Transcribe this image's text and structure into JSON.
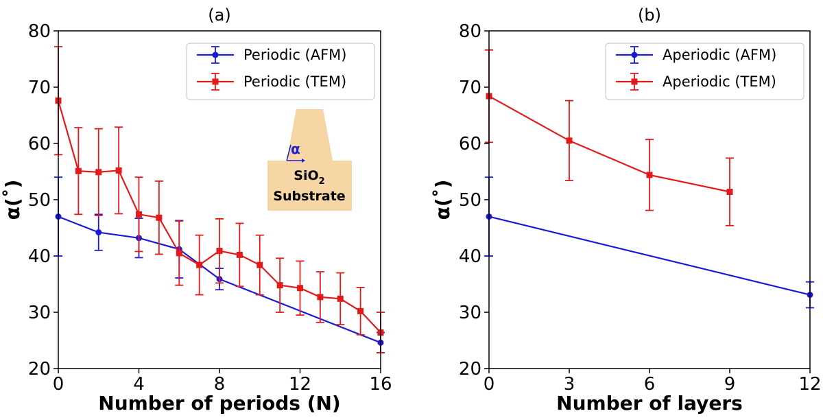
{
  "chart_data": [
    {
      "type": "line",
      "title": "(a)",
      "xlabel": "Number of periods (N)",
      "ylabel": "α(˚)",
      "xlim": [
        0,
        16
      ],
      "ylim": [
        20,
        80
      ],
      "xticks": [
        0,
        4,
        8,
        12,
        16
      ],
      "yticks": [
        20,
        30,
        40,
        50,
        60,
        70,
        80
      ],
      "legend_position": "top-right",
      "series": [
        {
          "name": "Periodic (AFM)",
          "color": "#1a1adb",
          "marker": "circle",
          "x": [
            0,
            2,
            4,
            6,
            8,
            16
          ],
          "y": [
            47,
            44.2,
            43.2,
            41.2,
            35.9,
            24.6
          ],
          "err": [
            7,
            3.2,
            3.5,
            5.1,
            1.9,
            1.8
          ]
        },
        {
          "name": "Periodic (TEM)",
          "color": "#e41a1a",
          "marker": "square",
          "x": [
            0,
            1,
            2,
            3,
            4,
            5,
            6,
            7,
            8,
            9,
            10,
            11,
            12,
            13,
            14,
            15,
            16
          ],
          "y": [
            67.6,
            55.1,
            54.9,
            55.2,
            47.4,
            46.8,
            40.5,
            38.4,
            40.9,
            40.2,
            38.4,
            34.8,
            34.3,
            32.7,
            32.4,
            30.2,
            26.4
          ],
          "err": [
            9.6,
            7.7,
            7.7,
            7.7,
            6.6,
            6.5,
            5.7,
            5.3,
            5.7,
            5.6,
            5.3,
            4.8,
            4.8,
            4.5,
            4.6,
            4.2,
            3.6
          ]
        }
      ],
      "inset": {
        "angle_symbol": "α",
        "material_main": "SiO",
        "material_sub": "2",
        "substrate_label": "Substrate",
        "fill_color": "#f7d6a5"
      }
    },
    {
      "type": "line",
      "title": "(b)",
      "xlabel": "Number of layers",
      "ylabel": "α(˚)",
      "xlim": [
        0,
        12
      ],
      "ylim": [
        20,
        80
      ],
      "xticks": [
        0,
        3,
        6,
        9,
        12
      ],
      "yticks": [
        20,
        30,
        40,
        50,
        60,
        70,
        80
      ],
      "legend_position": "top-right",
      "series": [
        {
          "name": "Aperiodic (AFM)",
          "color": "#1a1adb",
          "marker": "circle",
          "x": [
            0,
            12
          ],
          "y": [
            47,
            33.1
          ],
          "err": [
            7,
            2.3
          ]
        },
        {
          "name": "Aperiodic (TEM)",
          "color": "#e41a1a",
          "marker": "square",
          "x": [
            0,
            3,
            6,
            9
          ],
          "y": [
            68.4,
            60.5,
            54.4,
            51.4
          ],
          "err": [
            8.2,
            7.1,
            6.3,
            6
          ]
        }
      ]
    }
  ]
}
